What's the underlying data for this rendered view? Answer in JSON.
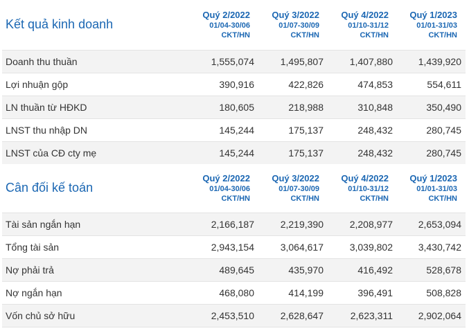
{
  "income": {
    "title": "Kết quả kinh doanh",
    "quarters": [
      {
        "quarter": "Quý 2/2022",
        "range": "01/04-30/06",
        "unit": "CKT/HN"
      },
      {
        "quarter": "Quý 3/2022",
        "range": "01/07-30/09",
        "unit": "CKT/HN"
      },
      {
        "quarter": "Quý 4/2022",
        "range": "01/10-31/12",
        "unit": "CKT/HN"
      },
      {
        "quarter": "Quý 1/2023",
        "range": "01/01-31/03",
        "unit": "CKT/HN"
      }
    ],
    "rows": [
      {
        "label": "Doanh thu thuần",
        "values": [
          "1,555,074",
          "1,495,807",
          "1,407,880",
          "1,439,920"
        ]
      },
      {
        "label": "Lợi nhuận gộp",
        "values": [
          "390,916",
          "422,826",
          "474,853",
          "554,611"
        ]
      },
      {
        "label": "LN thuần từ HĐKD",
        "values": [
          "180,605",
          "218,988",
          "310,848",
          "350,490"
        ]
      },
      {
        "label": "LNST thu nhập DN",
        "values": [
          "145,244",
          "175,137",
          "248,432",
          "280,745"
        ]
      },
      {
        "label": "LNST của CĐ cty mẹ",
        "values": [
          "145,244",
          "175,137",
          "248,432",
          "280,745"
        ]
      }
    ]
  },
  "balance": {
    "title": "Cân đối kế toán",
    "quarters": [
      {
        "quarter": "Quý 2/2022",
        "range": "01/04-30/06",
        "unit": "CKT/HN"
      },
      {
        "quarter": "Quý 3/2022",
        "range": "01/07-30/09",
        "unit": "CKT/HN"
      },
      {
        "quarter": "Quý 4/2022",
        "range": "01/10-31/12",
        "unit": "CKT/HN"
      },
      {
        "quarter": "Quý 1/2023",
        "range": "01/01-31/03",
        "unit": "CKT/HN"
      }
    ],
    "rows": [
      {
        "label": "Tài sản ngắn hạn",
        "values": [
          "2,166,187",
          "2,219,390",
          "2,208,977",
          "2,653,094"
        ]
      },
      {
        "label": "Tổng tài sản",
        "values": [
          "2,943,154",
          "3,064,617",
          "3,039,802",
          "3,430,742"
        ]
      },
      {
        "label": "Nợ phải trả",
        "values": [
          "489,645",
          "435,970",
          "416,492",
          "528,678"
        ]
      },
      {
        "label": "Nợ ngắn hạn",
        "values": [
          "468,080",
          "414,199",
          "396,491",
          "508,828"
        ]
      },
      {
        "label": "Vốn chủ sở hữu",
        "values": [
          "2,453,510",
          "2,628,647",
          "2,623,311",
          "2,902,064"
        ]
      }
    ]
  },
  "colors": {
    "accent": "#1b67b3",
    "text": "#333333",
    "row_shade": "#f3f3f3",
    "border": "#e3e3e3"
  }
}
